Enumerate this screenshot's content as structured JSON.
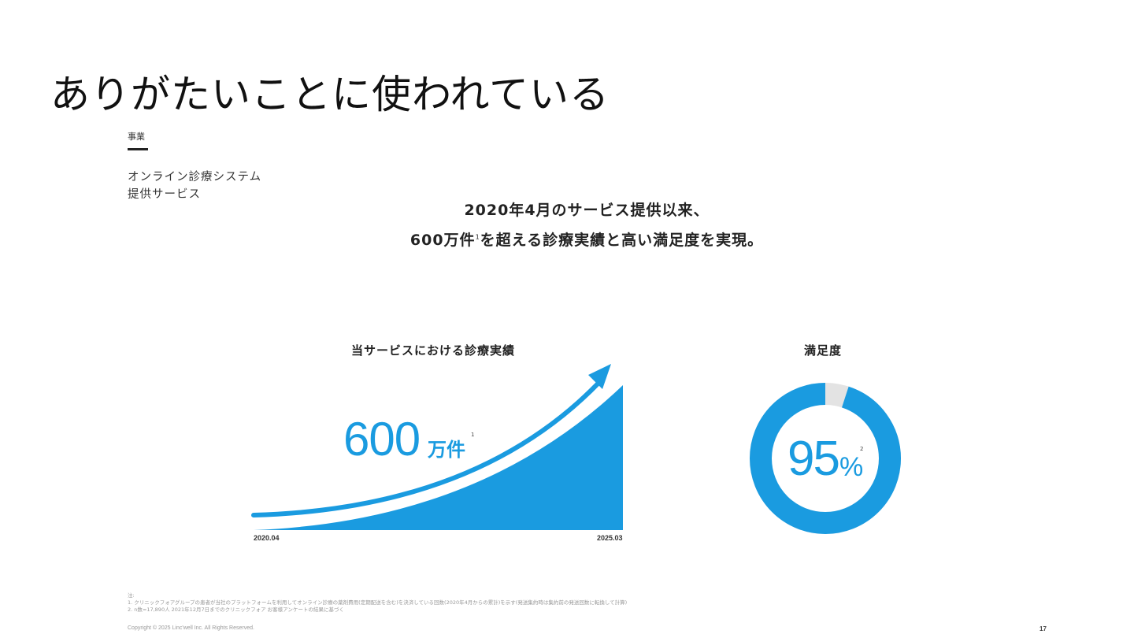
{
  "slide": {
    "title": "ありがたいことに使われている",
    "section_label": "事業",
    "section_name_line1": "オンライン診療システム",
    "section_name_line2": "提供サービス",
    "headline_line1": "2020年4月のサービス提供以来、",
    "headline_line2_a": "600万件",
    "headline_line2_sup": "1",
    "headline_line2_b": "を超える診療実績と高い満足度を実現。",
    "page_number": "17"
  },
  "growth_chart": {
    "title": "当サービスにおける診療実績",
    "value_number": "600",
    "value_unit": "万件",
    "value_sup": "1",
    "x_start_label": "2020.04",
    "x_end_label": "2025.03"
  },
  "satisfaction": {
    "title": "満足度",
    "percent_number": "95",
    "percent_sign": "%",
    "sup": "2"
  },
  "chart_data": [
    {
      "type": "area",
      "title": "当サービスにおける診療実績",
      "x_labels": [
        "2020.04",
        "2025.03"
      ],
      "annotation": "600万件"
    },
    {
      "type": "pie",
      "title": "満足度",
      "values": [
        95,
        5
      ],
      "annotation": "95%"
    }
  ],
  "colors": {
    "accent": "#1a9be0",
    "remainder": "#e3e3e3"
  },
  "footer": {
    "notes_heading": "注:",
    "note_1": "1. クリニックフォアグループの患者が当社のプラットフォームを利用してオンライン診療の薬剤費用(定期配送を含む)を決済している回数(2020年4月からの累計)を示す(発送集約時は集約前の発送回数に転換して計算)",
    "note_2": "2. n数=17,890人 2021年12月7日までのクリニックフォア お客様アンケートの結果に基づく",
    "copyright": "Copyright © 2025 Linc'well Inc. All Rights Reserved."
  }
}
